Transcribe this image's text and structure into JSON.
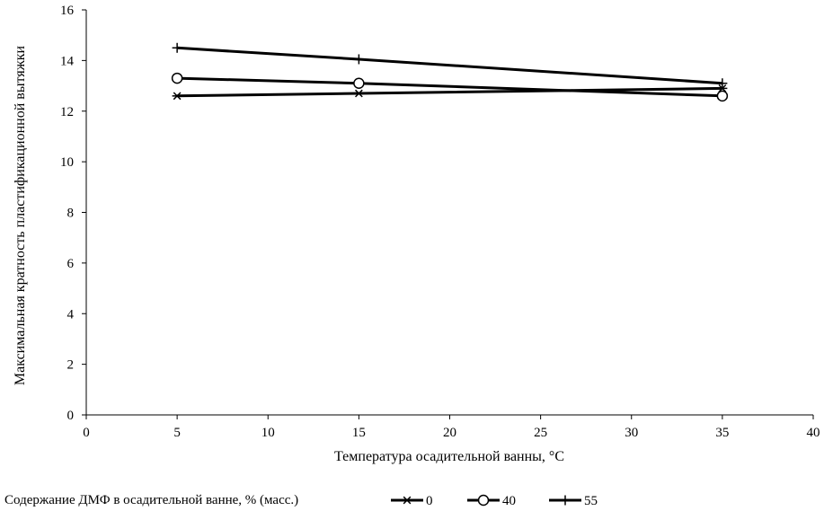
{
  "chart_data": {
    "type": "line",
    "title": "",
    "xlabel": "Температура осадительной ванны, °С",
    "ylabel": "Максимальная кратность пластификационной вытяжки",
    "xlim": [
      0,
      40
    ],
    "ylim": [
      0,
      16
    ],
    "x_ticks": [
      0,
      5,
      10,
      15,
      20,
      25,
      30,
      35,
      40
    ],
    "y_ticks": [
      0,
      2,
      4,
      6,
      8,
      10,
      12,
      14,
      16
    ],
    "grid": false,
    "legend_title": "Содержание ДМФ в осадительной ванне, % (масс.)",
    "legend_position": "bottom",
    "series": [
      {
        "name": "0",
        "marker": "asterisk",
        "color": "#000000",
        "x": [
          5,
          15,
          35
        ],
        "y": [
          12.6,
          12.7,
          12.9
        ]
      },
      {
        "name": "40",
        "marker": "circle",
        "color": "#000000",
        "x": [
          5,
          15,
          35
        ],
        "y": [
          13.3,
          13.1,
          12.6
        ]
      },
      {
        "name": "55",
        "marker": "plus",
        "color": "#000000",
        "x": [
          5,
          15,
          35
        ],
        "y": [
          14.5,
          14.05,
          13.1
        ]
      }
    ]
  }
}
